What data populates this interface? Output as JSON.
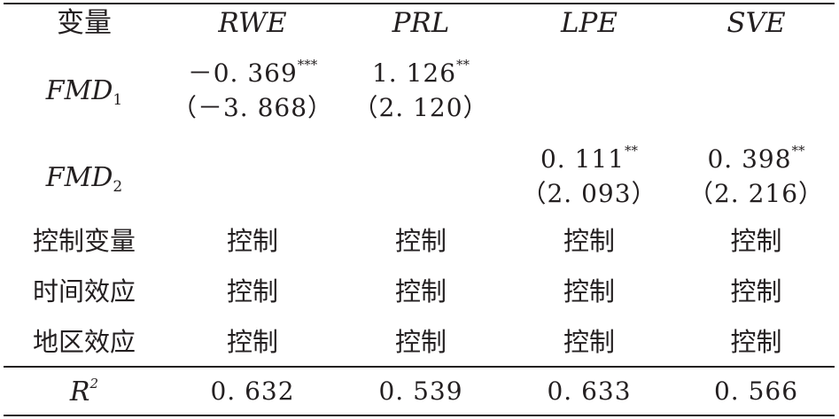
{
  "header": {
    "col0": "变量",
    "col1": "RWE",
    "col2": "PRL",
    "col3": "LPE",
    "col4": "SVE"
  },
  "rows": {
    "fmd1": {
      "label_base": "FMD",
      "label_sub": "1",
      "rwe_coef": "－0. 369",
      "rwe_sig": "***",
      "rwe_t": "（－3. 868）",
      "prl_coef": "1. 126",
      "prl_sig": "**",
      "prl_t": "（2. 120）"
    },
    "fmd2": {
      "label_base": "FMD",
      "label_sub": "2",
      "lpe_coef": "0. 111",
      "lpe_sig": "**",
      "lpe_t": "（2. 093）",
      "sve_coef": "0. 398",
      "sve_sig": "**",
      "sve_t": "（2. 216）"
    },
    "controls": {
      "label": "控制变量",
      "values": [
        "控制",
        "控制",
        "控制",
        "控制"
      ]
    },
    "time": {
      "label": "时间效应",
      "values": [
        "控制",
        "控制",
        "控制",
        "控制"
      ]
    },
    "region": {
      "label": "地区效应",
      "values": [
        "控制",
        "控制",
        "控制",
        "控制"
      ]
    },
    "r2": {
      "label_base": "R",
      "label_sup": "2",
      "values": [
        "0. 632",
        "0. 539",
        "0. 633",
        "0. 566"
      ]
    }
  }
}
